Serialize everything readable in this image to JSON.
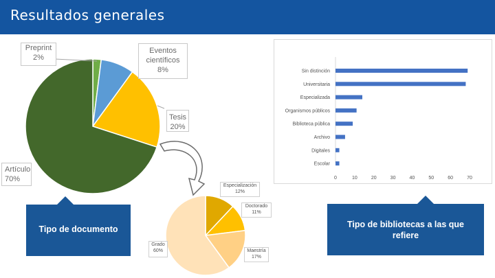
{
  "header": {
    "title": "Resultados generales"
  },
  "colors": {
    "header_bg": "#1455a0",
    "callout_bg": "#1a5797",
    "bar": "#4472c4"
  },
  "pie_document": {
    "slices": [
      {
        "name": "Preprint",
        "value": 2,
        "label": "Preprint",
        "pct": "2%",
        "color": "#70ad47"
      },
      {
        "name": "Eventos científicos",
        "value": 8,
        "label": "Eventos científicos",
        "pct": "8%",
        "color": "#5b9bd5"
      },
      {
        "name": "Tesis",
        "value": 20,
        "label": "Tesis",
        "pct": "20%",
        "color": "#ffc000"
      },
      {
        "name": "Artículo",
        "value": 70,
        "label": "Artículo",
        "pct": "70%",
        "color": "#43682b"
      }
    ]
  },
  "pie_thesis": {
    "slices": [
      {
        "name": "Especialización",
        "value": 12,
        "label": "Especialización",
        "pct": "12%",
        "color": "#e0a800"
      },
      {
        "name": "Doctorado",
        "value": 11,
        "label": "Doctorado",
        "pct": "11%",
        "color": "#ffc000"
      },
      {
        "name": "Maestría",
        "value": 17,
        "label": "Maestría",
        "pct": "17%",
        "color": "#ffd085"
      },
      {
        "name": "Grado",
        "value": 60,
        "label": "Grado",
        "pct": "60%",
        "color": "#ffe2b8"
      }
    ]
  },
  "callouts": {
    "document": "Tipo de documento",
    "libraries": "Tipo de bibliotecas a las que refiere"
  },
  "chart_data": {
    "type": "bar",
    "orientation": "horizontal",
    "categories": [
      "Sin distinción",
      "Universitaria",
      "Especializada",
      "Organismos públicos",
      "Biblioteca pública",
      "Archivo",
      "Digitales",
      "Escolar"
    ],
    "values": [
      69,
      68,
      14,
      11,
      9,
      5,
      2,
      2
    ],
    "xlim": [
      0,
      70
    ],
    "xticks": [
      "0",
      "10",
      "20",
      "30",
      "40",
      "50",
      "60",
      "70"
    ],
    "title": "",
    "xlabel": "",
    "ylabel": ""
  }
}
